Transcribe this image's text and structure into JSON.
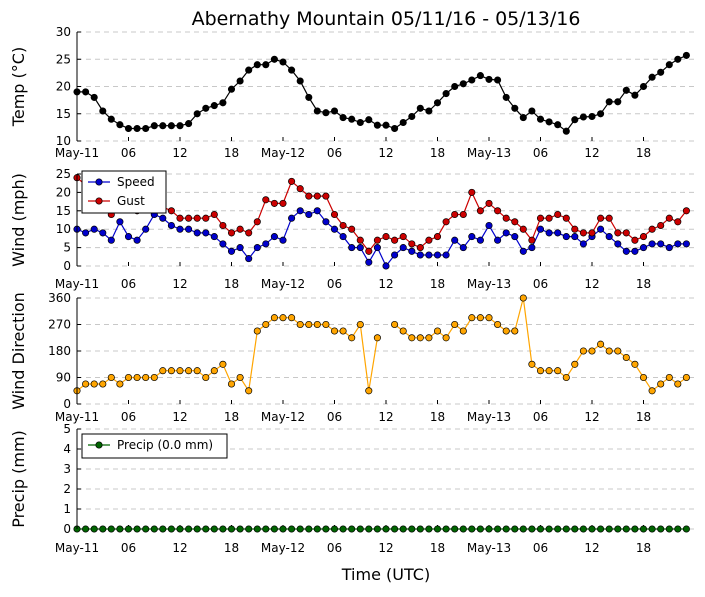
{
  "title": "Abernathy Mountain 05/11/16 - 05/13/16",
  "xlabel": "Time (UTC)",
  "x_ticks": [
    "May-11",
    "06",
    "12",
    "18",
    "May-12",
    "06",
    "12",
    "18",
    "May-13",
    "06",
    "12",
    "18"
  ],
  "x_tick_hours": [
    0,
    6,
    12,
    18,
    24,
    30,
    36,
    42,
    48,
    54,
    60,
    66
  ],
  "x_range": [
    0,
    72
  ],
  "chart_data": [
    {
      "type": "line",
      "ylabel": "Temp (°C)",
      "ylim": [
        10,
        30
      ],
      "yticks": [
        "10",
        "15",
        "20",
        "25",
        "30"
      ],
      "x": [
        0,
        1,
        2,
        3,
        4,
        5,
        6,
        7,
        8,
        9,
        10,
        11,
        12,
        13,
        14,
        15,
        16,
        17,
        18,
        19,
        20,
        21,
        22,
        23,
        24,
        25,
        26,
        27,
        28,
        29,
        30,
        31,
        32,
        33,
        34,
        35,
        36,
        37,
        38,
        39,
        40,
        41,
        42,
        43,
        44,
        45,
        46,
        47,
        48,
        49,
        50,
        51,
        52,
        53,
        54,
        55,
        56,
        57,
        58,
        59,
        60,
        61,
        62,
        63,
        64,
        65,
        66,
        67,
        68,
        69,
        70,
        71
      ],
      "series": [
        {
          "color": "#000000",
          "values": [
            19,
            19,
            18,
            15.5,
            14,
            13,
            12.3,
            12.3,
            12.3,
            12.8,
            12.8,
            12.8,
            12.8,
            13.2,
            15,
            16,
            16.5,
            17,
            19.5,
            21,
            23,
            24,
            24,
            25,
            24.5,
            23,
            21,
            18,
            15.5,
            15.2,
            15.5,
            14.3,
            14,
            13.4,
            13.9,
            12.9,
            12.9,
            12.3,
            13.4,
            14.5,
            16,
            15.5,
            17,
            18.7,
            20,
            20.5,
            21.2,
            22,
            21.3,
            21.2,
            18,
            16,
            14.3,
            15.5,
            14,
            13.5,
            13,
            11.8,
            13.9,
            14.4,
            14.5,
            15,
            17.2,
            17.2,
            19.3,
            18.4,
            20,
            21.7,
            22.6,
            24,
            25,
            25.7
          ]
        }
      ]
    },
    {
      "type": "line",
      "ylabel": "Wind (mph)",
      "ylim": [
        0,
        25
      ],
      "yticks": [
        "0",
        "5",
        "10",
        "15",
        "20",
        "25"
      ],
      "legend": "top-left",
      "x": [
        0,
        1,
        2,
        3,
        4,
        5,
        6,
        7,
        8,
        9,
        10,
        11,
        12,
        13,
        14,
        15,
        16,
        17,
        18,
        19,
        20,
        21,
        22,
        23,
        24,
        25,
        26,
        27,
        28,
        29,
        30,
        31,
        32,
        33,
        34,
        35,
        36,
        37,
        38,
        39,
        40,
        41,
        42,
        43,
        44,
        45,
        46,
        47,
        48,
        49,
        50,
        51,
        52,
        53,
        54,
        55,
        56,
        57,
        58,
        59,
        60,
        61,
        62,
        63,
        64,
        65,
        66,
        67,
        68,
        69,
        70,
        71
      ],
      "series": [
        {
          "name": "Speed",
          "color": "#0000cc",
          "values": [
            10,
            9,
            10,
            9,
            7,
            12,
            8,
            7,
            10,
            14,
            13,
            11,
            10,
            10,
            9,
            9,
            8,
            6,
            4,
            5,
            2,
            5,
            6,
            8,
            7,
            13,
            15,
            14,
            15,
            12,
            10,
            8,
            5,
            5,
            1,
            5,
            0,
            3,
            5,
            4,
            3,
            3,
            3,
            3,
            7,
            5,
            8,
            7,
            11,
            7,
            9,
            8,
            4,
            5,
            10,
            9,
            9,
            8,
            8,
            6,
            8,
            10,
            8,
            6,
            4,
            4,
            5,
            6,
            6,
            5,
            6,
            6
          ]
        },
        {
          "name": "Gust",
          "color": "#cc0000",
          "values": [
            24,
            22,
            18,
            16,
            14,
            16,
            17,
            15,
            16,
            17,
            16,
            15,
            13,
            13,
            13,
            13,
            14,
            11,
            9,
            10,
            9,
            12,
            18,
            17,
            17,
            23,
            21,
            19,
            19,
            19,
            14,
            11,
            10,
            7,
            4,
            7,
            8,
            7,
            8,
            6,
            5,
            7,
            8,
            12,
            14,
            14,
            20,
            15,
            17,
            15,
            13,
            12,
            10,
            7,
            13,
            13,
            14,
            13,
            10,
            9,
            9,
            13,
            13,
            9,
            9,
            7,
            8,
            10,
            11,
            13,
            12,
            15
          ]
        }
      ]
    },
    {
      "type": "line",
      "ylabel": "Wind Direction",
      "ylim": [
        0,
        360
      ],
      "yticks": [
        "0",
        "90",
        "180",
        "270",
        "360"
      ],
      "x": [
        0,
        1,
        2,
        3,
        4,
        5,
        6,
        7,
        8,
        9,
        10,
        11,
        12,
        13,
        14,
        15,
        16,
        17,
        18,
        19,
        20,
        21,
        22,
        23,
        24,
        25,
        26,
        27,
        28,
        29,
        30,
        31,
        32,
        33,
        34,
        35,
        36,
        37,
        38,
        39,
        40,
        41,
        42,
        43,
        44,
        45,
        46,
        47,
        48,
        49,
        50,
        51,
        52,
        53,
        54,
        55,
        56,
        57,
        58,
        59,
        60,
        61,
        62,
        63,
        64,
        65,
        66,
        67,
        68,
        69,
        70,
        71
      ],
      "series": [
        {
          "color": "#ffa500",
          "values": [
            45,
            68,
            68,
            68,
            90,
            68,
            90,
            90,
            90,
            90,
            113,
            113,
            113,
            113,
            113,
            90,
            113,
            135,
            68,
            90,
            45,
            248,
            270,
            293,
            293,
            293,
            270,
            270,
            270,
            270,
            248,
            248,
            225,
            270,
            45,
            225,
            null,
            270,
            248,
            225,
            225,
            225,
            248,
            225,
            270,
            248,
            293,
            293,
            293,
            270,
            248,
            248,
            360,
            135,
            113,
            113,
            113,
            90,
            135,
            180,
            180,
            203,
            180,
            180,
            158,
            135,
            90,
            45,
            68,
            90,
            68,
            90
          ]
        }
      ]
    },
    {
      "type": "line",
      "ylabel": "Precip (mm)",
      "ylim": [
        0,
        5
      ],
      "yticks": [
        "0",
        "1",
        "2",
        "3",
        "4",
        "5"
      ],
      "legend": "top-left",
      "x": [
        0,
        1,
        2,
        3,
        4,
        5,
        6,
        7,
        8,
        9,
        10,
        11,
        12,
        13,
        14,
        15,
        16,
        17,
        18,
        19,
        20,
        21,
        22,
        23,
        24,
        25,
        26,
        27,
        28,
        29,
        30,
        31,
        32,
        33,
        34,
        35,
        36,
        37,
        38,
        39,
        40,
        41,
        42,
        43,
        44,
        45,
        46,
        47,
        48,
        49,
        50,
        51,
        52,
        53,
        54,
        55,
        56,
        57,
        58,
        59,
        60,
        61,
        62,
        63,
        64,
        65,
        66,
        67,
        68,
        69,
        70,
        71
      ],
      "series": [
        {
          "name": "Precip (0.0 mm)",
          "color": "#006400",
          "values": [
            0,
            0,
            0,
            0,
            0,
            0,
            0,
            0,
            0,
            0,
            0,
            0,
            0,
            0,
            0,
            0,
            0,
            0,
            0,
            0,
            0,
            0,
            0,
            0,
            0,
            0,
            0,
            0,
            0,
            0,
            0,
            0,
            0,
            0,
            0,
            0,
            0,
            0,
            0,
            0,
            0,
            0,
            0,
            0,
            0,
            0,
            0,
            0,
            0,
            0,
            0,
            0,
            0,
            0,
            0,
            0,
            0,
            0,
            0,
            0,
            0,
            0,
            0,
            0,
            0,
            0,
            0,
            0,
            0,
            0,
            0,
            0
          ]
        }
      ]
    }
  ]
}
